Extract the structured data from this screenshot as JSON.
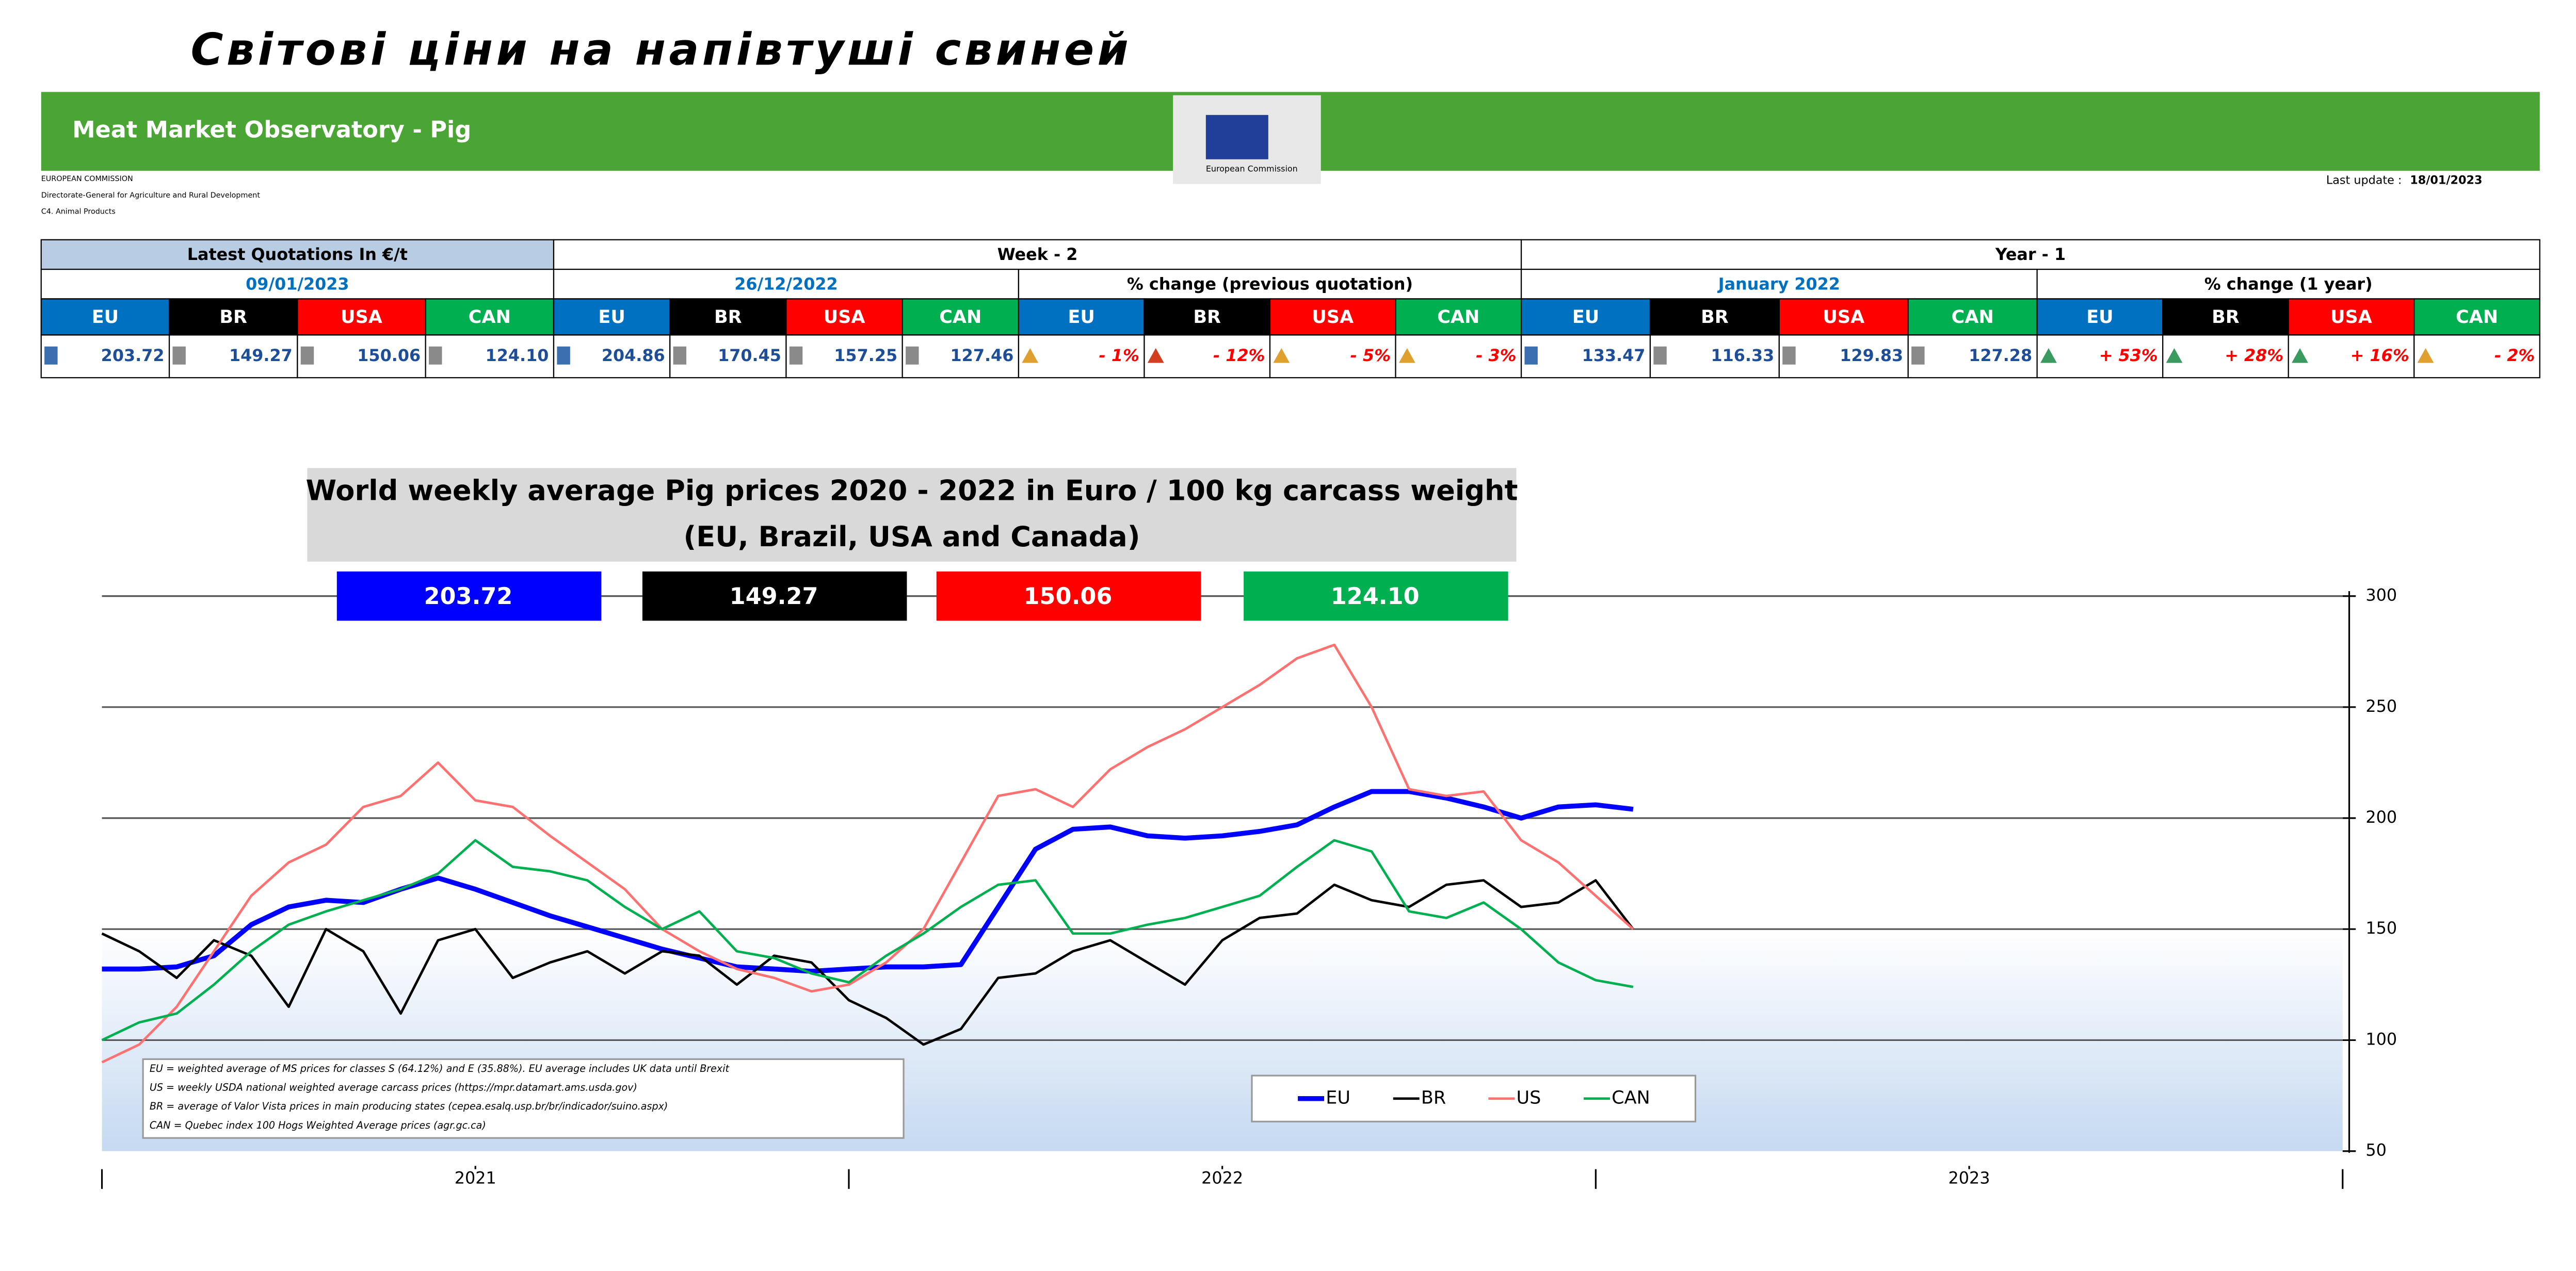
{
  "header": {
    "title": "Світові ціни на напівтуші свиней",
    "banner": "Meat Market Observatory - Pig",
    "logo_text": "European Commission",
    "org_lines": [
      "EUROPEAN COMMISSION",
      "Directorate-General for Agriculture and Rural Development",
      "C4. Animal Products"
    ],
    "last_update_label": "Last update :",
    "last_update": "18/01/2023"
  },
  "table": {
    "group_headers": [
      "Latest Quotations In €/t",
      "Week - 2",
      "Year - 1"
    ],
    "sub_headers": [
      "09/01/2023",
      "26/12/2022",
      "% change (previous quotation)",
      "January 2022",
      "% change (1 year)"
    ],
    "country_row": [
      "EU",
      "BR",
      "USA",
      "CAN",
      "EU",
      "BR",
      "USA",
      "CAN",
      "EU",
      "BR",
      "USA",
      "CAN",
      "EU",
      "BR",
      "USA",
      "CAN",
      "EU",
      "BR",
      "USA",
      "CAN"
    ],
    "value_row": [
      "203.72",
      "149.27",
      "150.06",
      "124.10",
      "204.86",
      "170.45",
      "157.25",
      "127.46",
      "- 1%",
      "- 12%",
      "- 5%",
      "- 3%",
      "133.47",
      "116.33",
      "129.83",
      "127.28",
      "+ 53%",
      "+ 28%",
      "+ 16%",
      "- 2%"
    ]
  },
  "chart_data": {
    "type": "line",
    "title": "World weekly average Pig prices 2020 - 2022  in Euro / 100 kg carcass weight",
    "subtitle": "(EU, Brazil, USA and Canada)",
    "badges": [
      "203.72",
      "149.27",
      "150.06",
      "124.10"
    ],
    "notes": [
      "EU   = weighted average of MS prices for classes S (64.12%) and E (35.88%). EU average includes UK data  until Brexit",
      "US   = weekly USDA national weighted average carcass prices (https://mpr.datamart.ams.usda.gov)",
      "BR   = average of Valor Vista prices in main producing states (cepea.esalq.usp.br/br/indicador/suino.aspx)",
      "CAN = Quebec index 100 Hogs Weighted Average prices (agr.gc.ca)"
    ],
    "x": [
      2021,
      2021.05,
      2021.1,
      2021.15,
      2021.2,
      2021.25,
      2021.3,
      2021.35,
      2021.4,
      2021.45,
      2021.5,
      2021.55,
      2021.6,
      2021.65,
      2021.7,
      2021.75,
      2021.8,
      2021.85,
      2021.9,
      2021.95,
      2022,
      2022.05,
      2022.1,
      2022.15,
      2022.2,
      2022.25,
      2022.3,
      2022.35,
      2022.4,
      2022.45,
      2022.5,
      2022.55,
      2022.6,
      2022.65,
      2022.7,
      2022.75,
      2022.8,
      2022.85,
      2022.9,
      2022.95,
      2023,
      2023.05
    ],
    "xlim": [
      2021,
      2024
    ],
    "xticks": [
      {
        "value": 2021.5,
        "label": "2021"
      },
      {
        "value": 2022.5,
        "label": "2022"
      },
      {
        "value": 2023.5,
        "label": "2023"
      }
    ],
    "ylim": [
      50,
      300
    ],
    "yticks": [
      50,
      100,
      150,
      200,
      250,
      300
    ],
    "grid": true,
    "series": [
      {
        "name": "EU",
        "color": "#0000ff",
        "values": [
          132,
          132,
          133,
          138,
          152,
          160,
          163,
          162,
          168,
          173,
          168,
          162,
          156,
          151,
          146,
          141,
          137,
          133,
          132,
          131,
          132,
          133,
          133,
          134,
          160,
          186,
          195,
          196,
          192,
          191,
          192,
          194,
          197,
          205,
          212,
          212,
          209,
          205,
          200,
          205,
          206,
          204
        ]
      },
      {
        "name": "BR",
        "color": "#000000",
        "values": [
          148,
          140,
          128,
          145,
          138,
          115,
          150,
          140,
          112,
          145,
          150,
          128,
          135,
          140,
          130,
          140,
          138,
          125,
          138,
          135,
          118,
          110,
          98,
          105,
          128,
          130,
          140,
          145,
          135,
          125,
          145,
          155,
          157,
          170,
          163,
          160,
          170,
          172,
          160,
          162,
          172,
          150
        ]
      },
      {
        "name": "US",
        "color": "#ff7070",
        "values": [
          90,
          98,
          115,
          140,
          165,
          180,
          188,
          205,
          210,
          225,
          208,
          205,
          192,
          180,
          168,
          150,
          140,
          132,
          128,
          122,
          125,
          135,
          150,
          180,
          210,
          213,
          205,
          222,
          232,
          240,
          250,
          260,
          272,
          278,
          250,
          213,
          210,
          212,
          190,
          180,
          165,
          150
        ]
      },
      {
        "name": "CAN",
        "color": "#00b050",
        "values": [
          100,
          108,
          112,
          125,
          140,
          152,
          158,
          163,
          168,
          175,
          190,
          178,
          176,
          172,
          160,
          150,
          158,
          140,
          137,
          130,
          126,
          138,
          148,
          160,
          170,
          172,
          148,
          148,
          152,
          155,
          160,
          165,
          178,
          190,
          185,
          158,
          155,
          162,
          150,
          135,
          127,
          124
        ]
      }
    ]
  }
}
